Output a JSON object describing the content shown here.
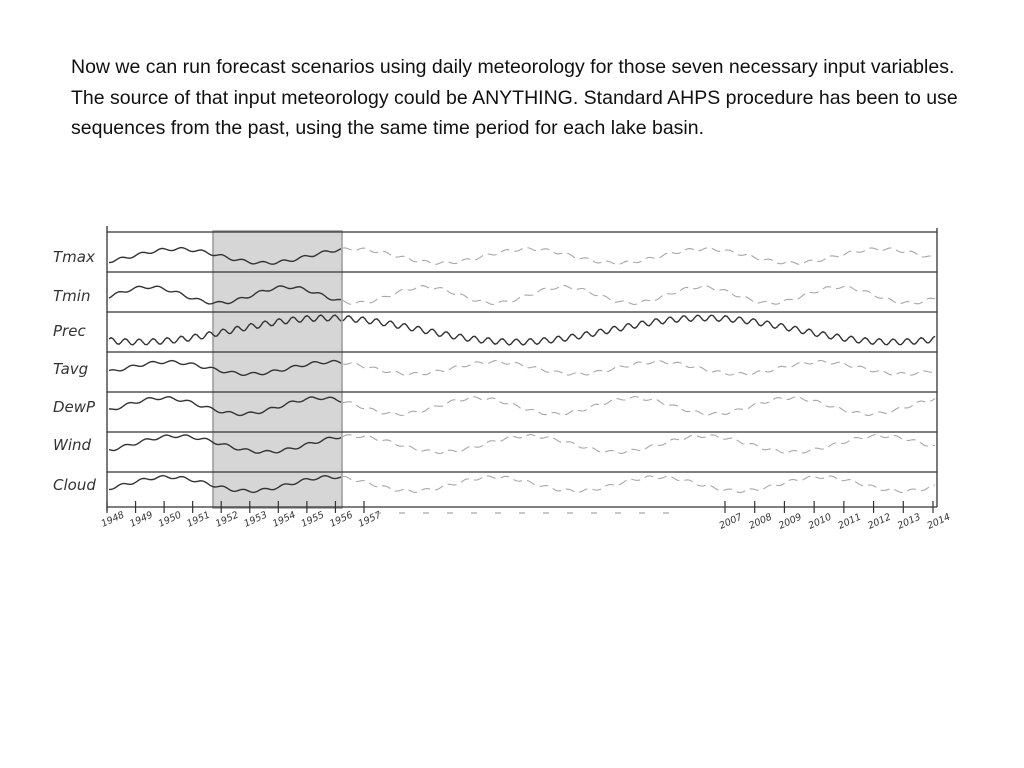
{
  "slide": {
    "text": "Now we can run forecast scenarios using daily meteorology for those seven necessary input variables. The source of that input meteorology could be ANYTHING. Standard AHPS procedure has been to use sequences from the past, using the same time period for each lake basin."
  },
  "figure": {
    "variables": [
      "Tmax",
      "Tmin",
      "Prec",
      "Tavg",
      "DewP",
      "Wind",
      "Cloud"
    ],
    "years_left": [
      "1948",
      "1949",
      "1950",
      "1951",
      "1952",
      "1953",
      "1954",
      "1955",
      "1956",
      "1957"
    ],
    "years_right": [
      "2007",
      "2008",
      "2009",
      "2010",
      "2011",
      "2012",
      "2013",
      "2014"
    ],
    "highlighted_years": [
      "1952",
      "1956"
    ],
    "colors": {
      "ink": "#333333",
      "faded_ink": "#a8a8a8",
      "highlight_fill": "#d6d6d6",
      "highlight_border": "#9a9a9a"
    }
  }
}
